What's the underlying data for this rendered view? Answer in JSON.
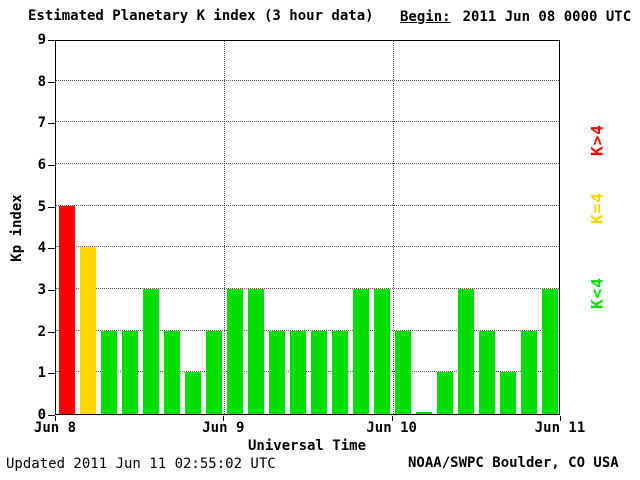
{
  "header": {
    "title": "Estimated Planetary K index (3 hour data)",
    "begin_label": "Begin:",
    "begin_value": "2011 Jun 08 0000 UTC"
  },
  "footer": {
    "updated": "Updated 2011 Jun 11 02:55:02 UTC",
    "source": "NOAA/SWPC Boulder, CO USA"
  },
  "chart_data": {
    "type": "bar",
    "title": "Estimated Planetary K index (3 hour data)",
    "xlabel": "Universal Time",
    "ylabel": "Kp index",
    "ylim": [
      0,
      9
    ],
    "yticks": [
      0,
      1,
      2,
      3,
      4,
      5,
      6,
      7,
      8,
      9
    ],
    "x_tick_labels": [
      "Jun 8",
      "Jun 9",
      "Jun 10",
      "Jun 11"
    ],
    "interval_hours": 3,
    "bars_per_day": 8,
    "values": [
      5,
      4,
      2,
      2,
      3,
      2,
      1,
      2,
      3,
      3,
      2,
      2,
      2,
      2,
      3,
      3,
      2,
      0,
      1,
      3,
      2,
      1,
      2,
      3
    ],
    "colors": {
      "low": "#00dd00",
      "mid": "#ffd400",
      "high": "#ff0000"
    },
    "color_rule": "K<4 green, K=4 yellow, K>4 red",
    "legend": [
      {
        "label": "K>4",
        "color": "#ff0000"
      },
      {
        "label": "K=4",
        "color": "#ffd400"
      },
      {
        "label": "K<4",
        "color": "#00dd00"
      }
    ],
    "grid": "dotted horizontal lines at each integer, dotted vertical lines at day boundaries",
    "legend_position": "right"
  }
}
